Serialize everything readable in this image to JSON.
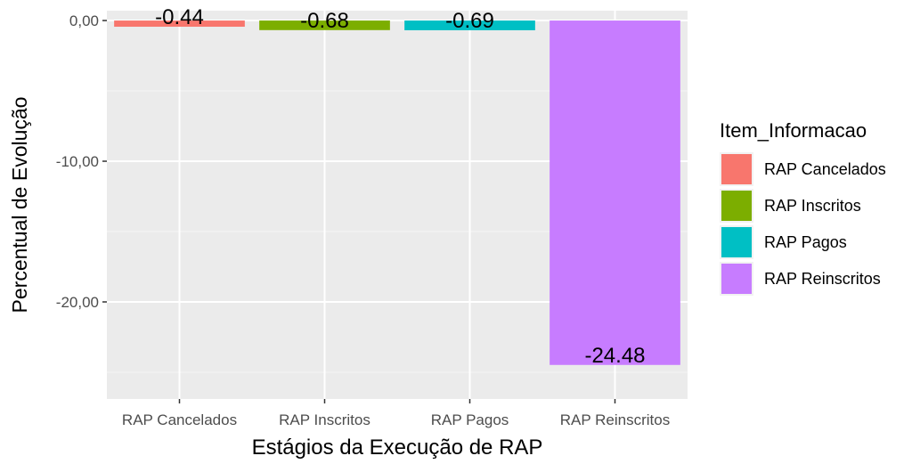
{
  "chart_data": {
    "type": "bar",
    "categories": [
      "RAP Cancelados",
      "RAP Inscritos",
      "RAP Pagos",
      "RAP Reinscritos"
    ],
    "values": [
      -0.44,
      -0.68,
      -0.69,
      -24.48
    ],
    "data_labels": [
      "-0.44",
      "-0.68",
      "-0.69",
      "-24.48"
    ],
    "colors": [
      "#F8766D",
      "#7CAE00",
      "#00BFC4",
      "#C77CFF"
    ],
    "title": "",
    "xlabel": "Estágios da Execução de RAP",
    "ylabel": "Percentual de Evolução",
    "ylim": [
      -26.9,
      0.7
    ],
    "yticks": [
      0,
      -10,
      -20
    ],
    "ytick_labels": [
      "0,00",
      "-10,00",
      "-20,00"
    ],
    "grid": true,
    "panel_background": "#EBEBEB",
    "legend": {
      "title": "Item_Informacao",
      "position": "right",
      "entries": [
        "RAP Cancelados",
        "RAP Inscritos",
        "RAP Pagos",
        "RAP Reinscritos"
      ]
    }
  }
}
